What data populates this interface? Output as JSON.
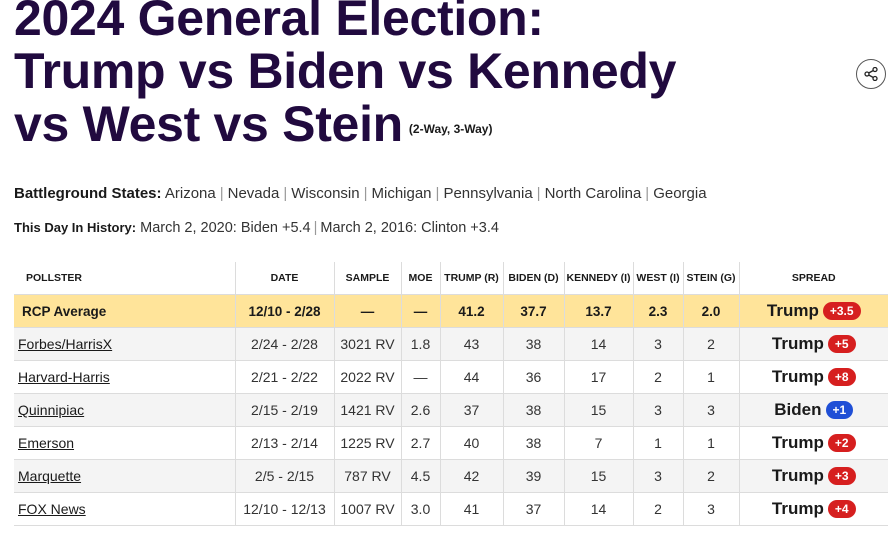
{
  "title": {
    "line1": "2024 General Election:",
    "line2": "Trump vs Biden vs Kennedy",
    "line3": "vs West vs Stein",
    "subtitle": "(2-Way, 3-Way)"
  },
  "share_icon": "share-icon",
  "battleground": {
    "label": "Battleground States:",
    "states": [
      "Arizona",
      "Nevada",
      "Wisconsin",
      "Michigan",
      "Pennsylvania",
      "North Carolina",
      "Georgia"
    ]
  },
  "history": {
    "label": "This Day In History:",
    "item1": "March 2, 2020: Biden +5.4",
    "item2": "March 2, 2016: Clinton +3.4"
  },
  "colors": {
    "republican": "#d61f1f",
    "democrat": "#1f4fd6",
    "average_row": "#ffe49a",
    "title": "#210a3f"
  },
  "table": {
    "headers": [
      "POLLSTER",
      "DATE",
      "SAMPLE",
      "MOE",
      "TRUMP (R)",
      "BIDEN (D)",
      "KENNEDY (I)",
      "WEST (I)",
      "STEIN (G)",
      "SPREAD"
    ],
    "average": {
      "pollster": "RCP Average",
      "date": "12/10 - 2/28",
      "sample": "—",
      "moe": "—",
      "trump": "41.2",
      "biden": "37.7",
      "kennedy": "13.7",
      "west": "2.3",
      "stein": "2.0",
      "spread_cand": "Trump",
      "spread_val": "+3.5",
      "party": "R"
    },
    "rows": [
      {
        "pollster": "Forbes/HarrisX",
        "date": "2/24 - 2/28",
        "sample": "3021 RV",
        "moe": "1.8",
        "trump": "43",
        "biden": "38",
        "kennedy": "14",
        "west": "3",
        "stein": "2",
        "spread_cand": "Trump",
        "spread_val": "+5",
        "party": "R"
      },
      {
        "pollster": "Harvard-Harris",
        "date": "2/21 - 2/22",
        "sample": "2022 RV",
        "moe": "—",
        "trump": "44",
        "biden": "36",
        "kennedy": "17",
        "west": "2",
        "stein": "1",
        "spread_cand": "Trump",
        "spread_val": "+8",
        "party": "R"
      },
      {
        "pollster": "Quinnipiac",
        "date": "2/15 - 2/19",
        "sample": "1421 RV",
        "moe": "2.6",
        "trump": "37",
        "biden": "38",
        "kennedy": "15",
        "west": "3",
        "stein": "3",
        "spread_cand": "Biden",
        "spread_val": "+1",
        "party": "D"
      },
      {
        "pollster": "Emerson",
        "date": "2/13 - 2/14",
        "sample": "1225 RV",
        "moe": "2.7",
        "trump": "40",
        "biden": "38",
        "kennedy": "7",
        "west": "1",
        "stein": "1",
        "spread_cand": "Trump",
        "spread_val": "+2",
        "party": "R"
      },
      {
        "pollster": "Marquette",
        "date": "2/5 - 2/15",
        "sample": "787 RV",
        "moe": "4.5",
        "trump": "42",
        "biden": "39",
        "kennedy": "15",
        "west": "3",
        "stein": "2",
        "spread_cand": "Trump",
        "spread_val": "+3",
        "party": "R"
      },
      {
        "pollster": "FOX News",
        "date": "12/10 - 12/13",
        "sample": "1007 RV",
        "moe": "3.0",
        "trump": "41",
        "biden": "37",
        "kennedy": "14",
        "west": "2",
        "stein": "3",
        "spread_cand": "Trump",
        "spread_val": "+4",
        "party": "R"
      }
    ]
  }
}
